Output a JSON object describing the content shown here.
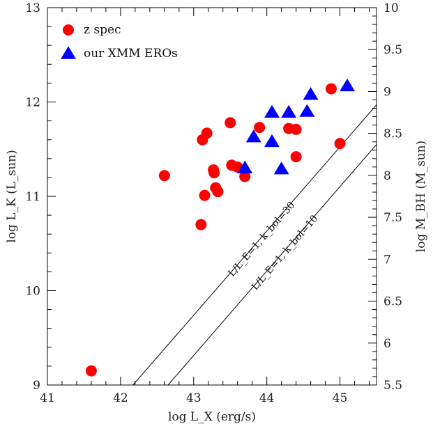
{
  "chart_data": {
    "type": "scatter",
    "xlabel": "log L_X (erg/s)",
    "ylabel": "log L_K (L_sun)",
    "y2label": "log M_BH (M_sun)",
    "xlim": [
      41,
      45.5
    ],
    "ylim": [
      9,
      13
    ],
    "y2lim": [
      5.5,
      10
    ],
    "x_ticks": [
      41,
      42,
      43,
      44,
      45
    ],
    "y_ticks": [
      9,
      10,
      11,
      12,
      13
    ],
    "y2_ticks": [
      5.5,
      6,
      6.5,
      7,
      7.5,
      8,
      8.5,
      9,
      9.5,
      10
    ],
    "grid": false,
    "legend_position": "top-left",
    "series": [
      {
        "name": "z spec",
        "marker": "circle",
        "color": "#ff0000",
        "points": [
          {
            "x": 41.6,
            "y": 9.15
          },
          {
            "x": 42.6,
            "y": 11.22
          },
          {
            "x": 43.1,
            "y": 10.7
          },
          {
            "x": 43.12,
            "y": 11.6
          },
          {
            "x": 43.18,
            "y": 11.67
          },
          {
            "x": 43.15,
            "y": 11.01
          },
          {
            "x": 43.27,
            "y": 11.28
          },
          {
            "x": 43.28,
            "y": 11.25
          },
          {
            "x": 43.3,
            "y": 11.09
          },
          {
            "x": 43.33,
            "y": 11.05
          },
          {
            "x": 43.5,
            "y": 11.78
          },
          {
            "x": 43.52,
            "y": 11.33
          },
          {
            "x": 43.6,
            "y": 11.31
          },
          {
            "x": 43.7,
            "y": 11.21
          },
          {
            "x": 43.9,
            "y": 11.73
          },
          {
            "x": 44.3,
            "y": 11.72
          },
          {
            "x": 44.4,
            "y": 11.71
          },
          {
            "x": 44.4,
            "y": 11.42
          },
          {
            "x": 44.88,
            "y": 12.14
          },
          {
            "x": 45.0,
            "y": 11.56
          }
        ]
      },
      {
        "name": "our XMM EROs",
        "marker": "triangle",
        "color": "#0000ff",
        "points": [
          {
            "x": 43.7,
            "y": 11.3
          },
          {
            "x": 43.82,
            "y": 11.63
          },
          {
            "x": 44.07,
            "y": 11.58
          },
          {
            "x": 44.07,
            "y": 11.89
          },
          {
            "x": 44.2,
            "y": 11.29
          },
          {
            "x": 44.3,
            "y": 11.89
          },
          {
            "x": 44.55,
            "y": 11.9
          },
          {
            "x": 44.6,
            "y": 12.08
          },
          {
            "x": 45.1,
            "y": 12.17
          }
        ]
      }
    ],
    "relations": [
      {
        "label": "L/L_E=1, k_bol=30",
        "points": [
          [
            42.17,
            9
          ],
          [
            45.5,
            11.97
          ]
        ]
      },
      {
        "label": "L/L_E=1, k_bol=10",
        "points": [
          [
            42.65,
            9
          ],
          [
            45.5,
            11.55
          ]
        ]
      }
    ]
  }
}
